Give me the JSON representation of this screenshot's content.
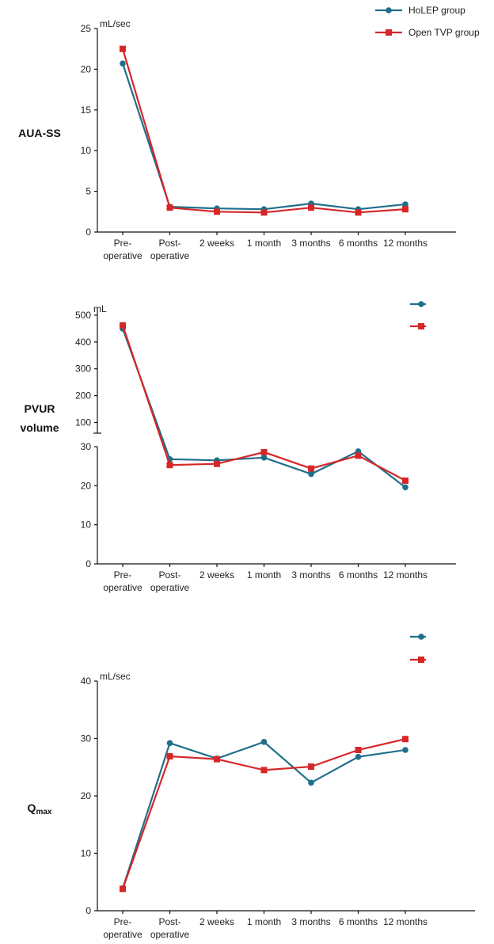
{
  "legend": {
    "holep": "HoLEP group",
    "tvp": "Open TVP group"
  },
  "colors": {
    "holep": "#1f6f8b",
    "tvp": "#d62728"
  },
  "chart_data": [
    {
      "type": "line",
      "row_label": "AUA-SS",
      "unit": "mL/sec",
      "categories": [
        [
          "Pre-",
          "operative"
        ],
        [
          "Post-",
          "operative"
        ],
        [
          "2 weeks"
        ],
        [
          "1 month"
        ],
        [
          "3 months"
        ],
        [
          "6 months"
        ],
        [
          "12 months"
        ]
      ],
      "ylim": [
        0,
        25
      ],
      "yticks": [
        0,
        5,
        10,
        15,
        20,
        25
      ],
      "series": [
        {
          "name": "HoLEP group",
          "key": "holep",
          "marker": "circle",
          "values": [
            20.7,
            3.1,
            2.9,
            2.8,
            3.5,
            2.8,
            3.4
          ]
        },
        {
          "name": "Open TVP group",
          "key": "tvp",
          "marker": "square",
          "values": [
            22.5,
            3.0,
            2.5,
            2.4,
            3.0,
            2.4,
            2.8
          ]
        }
      ],
      "legend_shown": true
    },
    {
      "type": "line",
      "row_label": [
        "PVUR",
        "volume"
      ],
      "unit": "mL",
      "categories": [
        [
          "Pre-",
          "operative"
        ],
        [
          "Post-",
          "operative"
        ],
        [
          "2 weeks"
        ],
        [
          "1 month"
        ],
        [
          "3 months"
        ],
        [
          "6 months"
        ],
        [
          "12 months"
        ]
      ],
      "broken_axis": true,
      "ylim_lower": [
        0,
        30
      ],
      "yticks_lower": [
        0,
        10,
        20,
        30
      ],
      "ylim_upper": [
        60,
        500
      ],
      "yticks_upper": [
        100,
        200,
        300,
        400,
        500
      ],
      "series": [
        {
          "name": "HoLEP group",
          "key": "holep",
          "marker": "circle",
          "values": [
            450,
            26.8,
            26.5,
            27.2,
            23.0,
            28.8,
            19.6
          ]
        },
        {
          "name": "Open TVP group",
          "key": "tvp",
          "marker": "square",
          "values": [
            462,
            25.3,
            25.6,
            28.6,
            24.4,
            27.7,
            21.3
          ]
        }
      ],
      "legend_shown": true
    },
    {
      "type": "line",
      "row_label": {
        "main": "Q",
        "sub": "max"
      },
      "unit": "mL/sec",
      "categories": [
        [
          "Pre-",
          "operative"
        ],
        [
          "Post-",
          "operative"
        ],
        [
          "2 weeks"
        ],
        [
          "1 month"
        ],
        [
          "3 months"
        ],
        [
          "6 months"
        ],
        [
          "12 months"
        ]
      ],
      "ylim": [
        0,
        40
      ],
      "yticks": [
        0,
        10,
        20,
        30,
        40
      ],
      "series": [
        {
          "name": "HoLEP group",
          "key": "holep",
          "marker": "circle",
          "values": [
            3.9,
            29.2,
            26.5,
            29.4,
            22.3,
            26.8,
            28.0
          ]
        },
        {
          "name": "Open TVP group",
          "key": "tvp",
          "marker": "square",
          "values": [
            3.8,
            26.9,
            26.4,
            24.5,
            25.1,
            28.0,
            29.9
          ]
        }
      ],
      "legend_shown": true
    }
  ]
}
